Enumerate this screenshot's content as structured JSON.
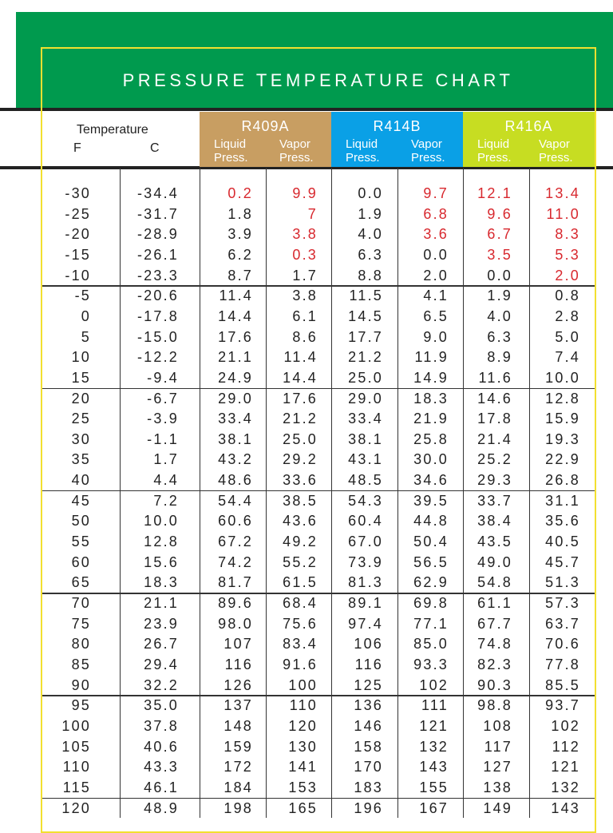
{
  "title": "PRESSURE TEMPERATURE CHART",
  "colors": {
    "band": "#009a4e",
    "frame": "#f2e030",
    "r409a": "#c89e62",
    "r414b": "#0aa0e6",
    "r416a": "#c7dd22",
    "highlight": "#d8282e"
  },
  "header": {
    "temperature": "Temperature",
    "f": "F",
    "c": "C",
    "refrigerants": [
      {
        "name": "R409A",
        "liquid": "Liquid Press.",
        "vapor": "Vapor Press."
      },
      {
        "name": "R414B",
        "liquid": "Liquid Press.",
        "vapor": "Vapor Press."
      },
      {
        "name": "R416A",
        "liquid": "Liquid Press.",
        "vapor": "Vapor Press."
      }
    ]
  },
  "rows": [
    [
      "-30",
      "-34.4",
      "0.2",
      "9.9",
      "0.0",
      "9.7",
      "12.1",
      "13.4"
    ],
    [
      "-25",
      "-31.7",
      "1.8",
      "7",
      "1.9",
      "6.8",
      "9.6",
      "11.0"
    ],
    [
      "-20",
      "-28.9",
      "3.9",
      "3.8",
      "4.0",
      "3.6",
      "6.7",
      "8.3"
    ],
    [
      "-15",
      "-26.1",
      "6.2",
      "0.3",
      "6.3",
      "0.0",
      "3.5",
      "5.3"
    ],
    [
      "-10",
      "-23.3",
      "8.7",
      "1.7",
      "8.8",
      "2.0",
      "0.0",
      "2.0"
    ],
    [
      "-5",
      "-20.6",
      "11.4",
      "3.8",
      "11.5",
      "4.1",
      "1.9",
      "0.8"
    ],
    [
      "0",
      "-17.8",
      "14.4",
      "6.1",
      "14.5",
      "6.5",
      "4.0",
      "2.8"
    ],
    [
      "5",
      "-15.0",
      "17.6",
      "8.6",
      "17.7",
      "9.0",
      "6.3",
      "5.0"
    ],
    [
      "10",
      "-12.2",
      "21.1",
      "11.4",
      "21.2",
      "11.9",
      "8.9",
      "7.4"
    ],
    [
      "15",
      "-9.4",
      "24.9",
      "14.4",
      "25.0",
      "14.9",
      "11.6",
      "10.0"
    ],
    [
      "20",
      "-6.7",
      "29.0",
      "17.6",
      "29.0",
      "18.3",
      "14.6",
      "12.8"
    ],
    [
      "25",
      "-3.9",
      "33.4",
      "21.2",
      "33.4",
      "21.9",
      "17.8",
      "15.9"
    ],
    [
      "30",
      "-1.1",
      "38.1",
      "25.0",
      "38.1",
      "25.8",
      "21.4",
      "19.3"
    ],
    [
      "35",
      "1.7",
      "43.2",
      "29.2",
      "43.1",
      "30.0",
      "25.2",
      "22.9"
    ],
    [
      "40",
      "4.4",
      "48.6",
      "33.6",
      "48.5",
      "34.6",
      "29.3",
      "26.8"
    ],
    [
      "45",
      "7.2",
      "54.4",
      "38.5",
      "54.3",
      "39.5",
      "33.7",
      "31.1"
    ],
    [
      "50",
      "10.0",
      "60.6",
      "43.6",
      "60.4",
      "44.8",
      "38.4",
      "35.6"
    ],
    [
      "55",
      "12.8",
      "67.2",
      "49.2",
      "67.0",
      "50.4",
      "43.5",
      "40.5"
    ],
    [
      "60",
      "15.6",
      "74.2",
      "55.2",
      "73.9",
      "56.5",
      "49.0",
      "45.7"
    ],
    [
      "65",
      "18.3",
      "81.7",
      "61.5",
      "81.3",
      "62.9",
      "54.8",
      "51.3"
    ],
    [
      "70",
      "21.1",
      "89.6",
      "68.4",
      "89.1",
      "69.8",
      "61.1",
      "57.3"
    ],
    [
      "75",
      "23.9",
      "98.0",
      "75.6",
      "97.4",
      "77.1",
      "67.7",
      "63.7"
    ],
    [
      "80",
      "26.7",
      "107",
      "83.4",
      "106",
      "85.0",
      "74.8",
      "70.6"
    ],
    [
      "85",
      "29.4",
      "116",
      "91.6",
      "116",
      "93.3",
      "82.3",
      "77.8"
    ],
    [
      "90",
      "32.2",
      "126",
      "100",
      "125",
      "102",
      "90.3",
      "85.5"
    ],
    [
      "95",
      "35.0",
      "137",
      "110",
      "136",
      "111",
      "98.8",
      "93.7"
    ],
    [
      "100",
      "37.8",
      "148",
      "120",
      "146",
      "121",
      "108",
      "102"
    ],
    [
      "105",
      "40.6",
      "159",
      "130",
      "158",
      "132",
      "117",
      "112"
    ],
    [
      "110",
      "43.3",
      "172",
      "141",
      "170",
      "143",
      "127",
      "121"
    ],
    [
      "115",
      "46.1",
      "184",
      "153",
      "183",
      "155",
      "138",
      "132"
    ],
    [
      "120",
      "48.9",
      "198",
      "165",
      "196",
      "167",
      "149",
      "143"
    ]
  ],
  "red_cells": {
    "0": [
      2,
      3,
      5,
      6,
      7
    ],
    "1": [
      3,
      5,
      6,
      7
    ],
    "2": [
      3,
      5,
      6,
      7
    ],
    "3": [
      3,
      6,
      7
    ],
    "4": [
      7
    ]
  }
}
